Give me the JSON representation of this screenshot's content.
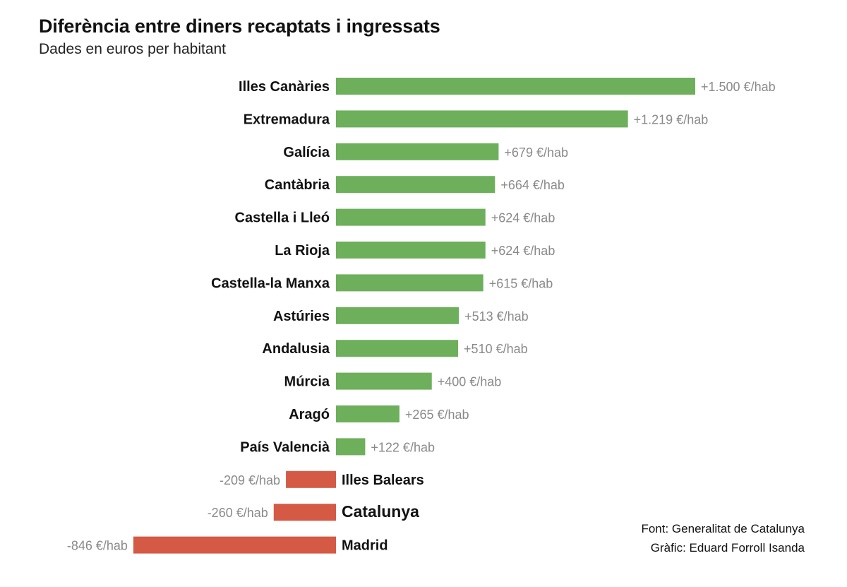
{
  "title": "Diferència entre diners recaptats i ingressats",
  "subtitle": "Dades en euros per habitant",
  "credits": {
    "source": "Font: Generalitat de Catalunya",
    "author": "Gràfic: Eduard Forroll Isanda"
  },
  "colors": {
    "positive": "#6daf5b",
    "negative": "#d45a45",
    "value_label": "#8a8a8a"
  },
  "chart_data": {
    "type": "bar",
    "orientation": "horizontal",
    "categories": [
      "Illes Canàries",
      "Extremadura",
      "Galícia",
      "Cantàbria",
      "Castella i Lleó",
      "La Rioja",
      "Castella-la Manxa",
      "Astúries",
      "Andalusia",
      "Múrcia",
      "Aragó",
      "País Valencià",
      "Illes Balears",
      "Catalunya",
      "Madrid"
    ],
    "values": [
      1500,
      1219,
      679,
      664,
      624,
      624,
      615,
      513,
      510,
      400,
      265,
      122,
      -209,
      -260,
      -846
    ],
    "value_labels": [
      "+1.500 €/hab",
      "+1.219 €/hab",
      "+679 €/hab",
      "+664 €/hab",
      "+624 €/hab",
      "+624 €/hab",
      "+615 €/hab",
      "+513 €/hab",
      "+510 €/hab",
      "+400 €/hab",
      "+265 €/hab",
      "+122 €/hab",
      "-209 €/hab",
      "-260 €/hab",
      "-846 €/hab"
    ],
    "highlight": "Catalunya",
    "unit": "€/hab",
    "grid": false,
    "legend": "none"
  }
}
